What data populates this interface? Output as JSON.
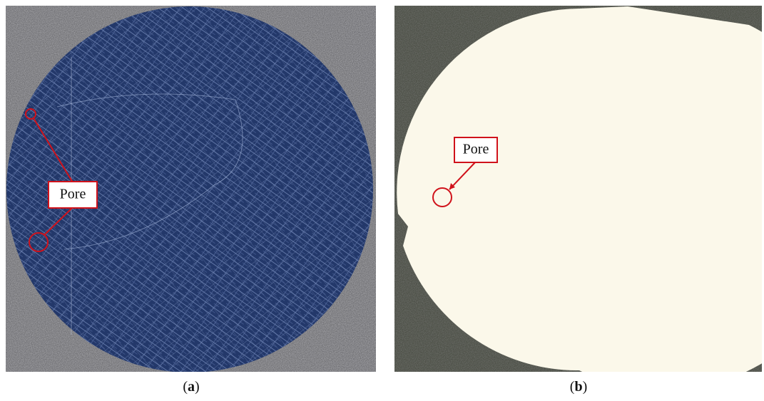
{
  "panels": [
    {
      "annotation": "Pore",
      "caption_parts": [
        "(",
        "a",
        ")"
      ]
    },
    {
      "annotation": "Pore",
      "caption_parts": [
        "(",
        "b",
        ")"
      ]
    }
  ]
}
